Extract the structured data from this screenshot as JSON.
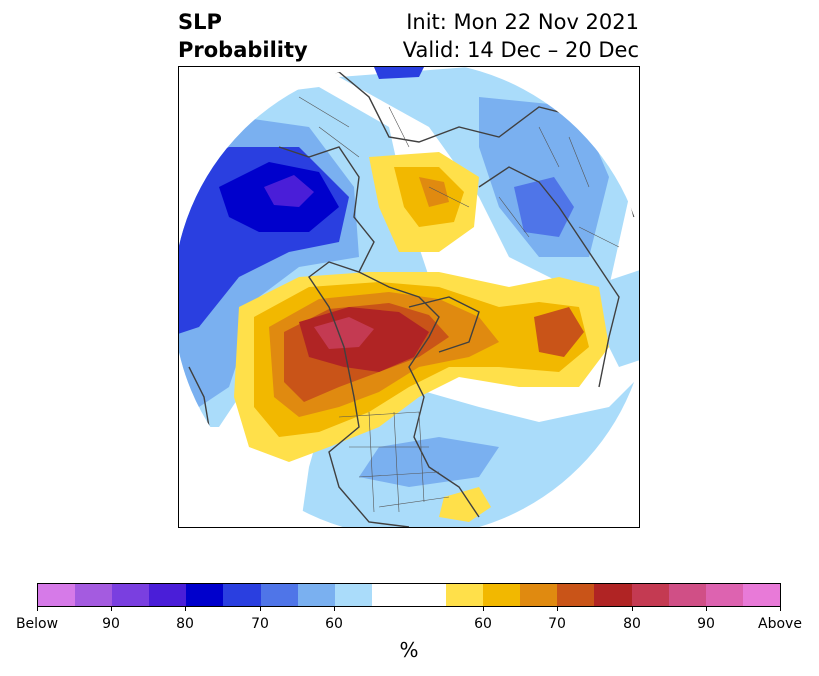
{
  "title": {
    "left_line1": "SLP",
    "left_line2": "Probability",
    "right_line1": "Init: Mon 22 Nov 2021",
    "right_line2": "Valid: 14 Dec – 20 Dec"
  },
  "colorbar": {
    "unit": "%",
    "colors": [
      "#d67ae8",
      "#a45be0",
      "#7a3fe0",
      "#4a1ed8",
      "#0000cc",
      "#2a3fe0",
      "#4f75e8",
      "#7ab0f0",
      "#aadcfa",
      "#ffffff",
      "#ffffff",
      "#ffe04a",
      "#f2b800",
      "#e08a10",
      "#c95418",
      "#b02424",
      "#c43a52",
      "#d04f86",
      "#dd63b0",
      "#e87ad8"
    ],
    "tick_labels": [
      "Below",
      "90",
      "80",
      "70",
      "60",
      "60",
      "70",
      "80",
      "90",
      "Above"
    ]
  },
  "legend_colors": {
    "below_strong": "#0000cc",
    "below_weak": "#aadcfa",
    "above_weak": "#ffe04a",
    "above_strong": "#b02424"
  }
}
